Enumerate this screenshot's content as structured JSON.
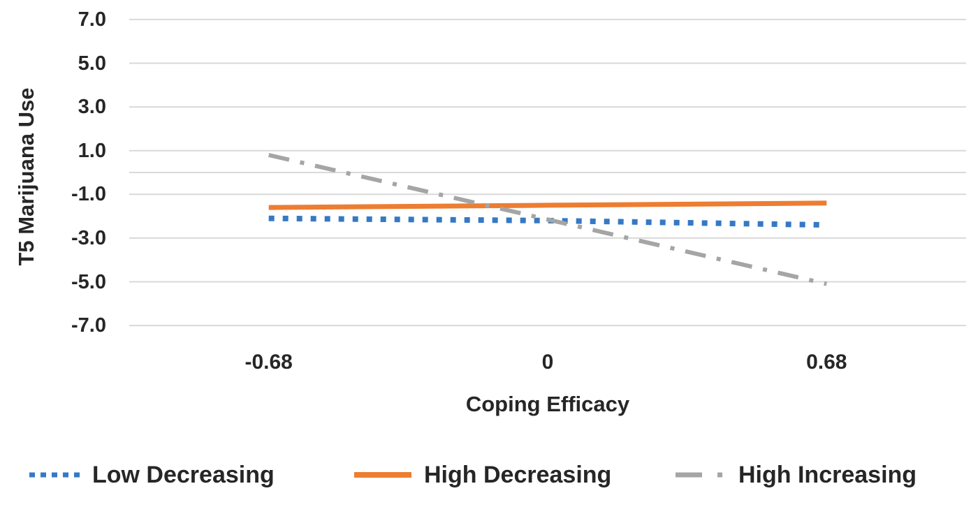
{
  "chart_data": {
    "type": "line",
    "title": "",
    "xlabel": "Coping Efficacy",
    "ylabel": "T5 Marijuana Use",
    "categories": [
      "-0.68",
      "0",
      "0.68"
    ],
    "y_axis": {
      "tick_labels": [
        "7.0",
        "5.0",
        "3.0",
        "1.0",
        "-1.0",
        "-3.0",
        "-5.0",
        "-7.0"
      ],
      "tick_values": [
        7,
        5,
        3,
        1,
        -1,
        -3,
        -5,
        -7
      ],
      "gridline_values": [
        7,
        5,
        3,
        1,
        0,
        -1,
        -3,
        -5,
        -7
      ],
      "ylim": [
        -7.5,
        7.5
      ],
      "grid": true
    },
    "legend_position": "bottom",
    "series": [
      {
        "name": "Low Decreasing",
        "style": "dotted",
        "color": "#3579C5",
        "values": [
          -2.1,
          -2.2,
          -2.4
        ]
      },
      {
        "name": "High Decreasing",
        "style": "solid",
        "color": "#ED7D31",
        "values": [
          -1.6,
          -1.5,
          -1.4
        ]
      },
      {
        "name": "High Increasing",
        "style": "dash-dot",
        "color": "#A5A5A5",
        "values": [
          0.8,
          -2.15,
          -5.1
        ]
      }
    ],
    "gridline_color": "#D9D9D9",
    "text_color": "#262626"
  }
}
